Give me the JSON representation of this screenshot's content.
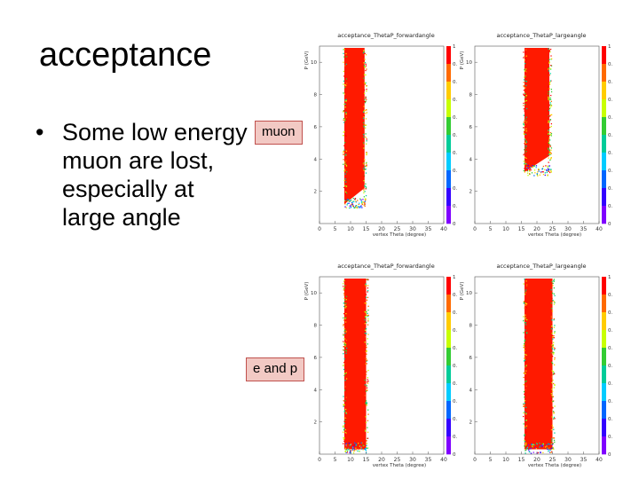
{
  "slide": {
    "title": "acceptance",
    "bullet_text": "Some low energy muon are lost, especially at large angle",
    "bullet_glyph": "•",
    "label_muon": "muon",
    "label_ep": "e and p"
  },
  "chart_data": [
    {
      "type": "heatmap",
      "title": "acceptance_ThetaP_forwardangle",
      "xlabel": "vertex Theta (degree)",
      "ylabel": "P (GeV)",
      "xlim": [
        0,
        40
      ],
      "ylim": [
        0,
        11
      ],
      "x_ticks": [
        "0",
        "5",
        "10",
        "15",
        "20",
        "25",
        "30",
        "35",
        "40"
      ],
      "y_ticks": [
        "2",
        "4",
        "6",
        "8",
        "10"
      ],
      "colorbar_ticks": [
        "1",
        "0.9",
        "0.8",
        "0.7",
        "0.6",
        "0.5",
        "0.4",
        "0.3",
        "0.2",
        "0.1",
        "0"
      ],
      "band": {
        "theta_min": 8,
        "theta_max": 14.5,
        "p_min_low_theta": 1.2,
        "p_min_high_theta": 2.2
      }
    },
    {
      "type": "heatmap",
      "title": "acceptance_ThetaP_largeangle",
      "xlabel": "vertex Theta (degree)",
      "ylabel": "P (GeV)",
      "xlim": [
        0,
        40
      ],
      "ylim": [
        0,
        11
      ],
      "x_ticks": [
        "0",
        "5",
        "10",
        "15",
        "20",
        "25",
        "30",
        "35",
        "40"
      ],
      "y_ticks": [
        "2",
        "4",
        "6",
        "8",
        "10"
      ],
      "colorbar_ticks": [
        "1",
        "0.9",
        "0.8",
        "0.7",
        "0.6",
        "0.5",
        "0.4",
        "0.3",
        "0.2",
        "0.1",
        "0"
      ],
      "band": {
        "theta_min": 16,
        "theta_max": 24,
        "p_min_low_theta": 3.2,
        "p_min_high_theta": 4.2
      }
    },
    {
      "type": "heatmap",
      "title": "acceptance_ThetaP_forwardangle",
      "xlabel": "vertex Theta (degree)",
      "ylabel": "P (GeV)",
      "xlim": [
        0,
        40
      ],
      "ylim": [
        0,
        11
      ],
      "x_ticks": [
        "0",
        "5",
        "10",
        "15",
        "20",
        "25",
        "30",
        "35",
        "40"
      ],
      "y_ticks": [
        "2",
        "4",
        "6",
        "8",
        "10"
      ],
      "colorbar_ticks": [
        "1",
        "0.9",
        "0.8",
        "0.7",
        "0.6",
        "0.5",
        "0.4",
        "0.3",
        "0.2",
        "0.1",
        "0"
      ],
      "band": {
        "theta_min": 8,
        "theta_max": 15,
        "p_min_low_theta": 0.3,
        "p_min_high_theta": 0.3
      }
    },
    {
      "type": "heatmap",
      "title": "acceptance_ThetaP_largeangle",
      "xlabel": "vertex Theta (degree)",
      "ylabel": "P (GeV)",
      "xlim": [
        0,
        40
      ],
      "ylim": [
        0,
        11
      ],
      "x_ticks": [
        "0",
        "5",
        "10",
        "15",
        "20",
        "25",
        "30",
        "35",
        "40"
      ],
      "y_ticks": [
        "2",
        "4",
        "6",
        "8",
        "10"
      ],
      "colorbar_ticks": [
        "1",
        "0.9",
        "0.8",
        "0.7",
        "0.6",
        "0.5",
        "0.4",
        "0.3",
        "0.2",
        "0.1",
        "0"
      ],
      "band": {
        "theta_min": 16,
        "theta_max": 25,
        "p_min_low_theta": 0.3,
        "p_min_high_theta": 0.3
      }
    }
  ]
}
